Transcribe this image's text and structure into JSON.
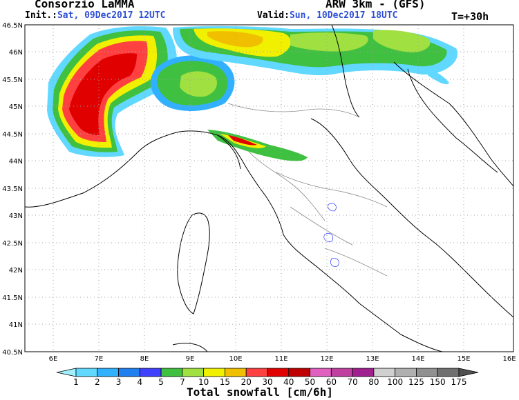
{
  "header": {
    "org": "Consorzio LaMMA",
    "model": "ARW 3km - (GFS)",
    "init_label": "Init.:",
    "init_value": "Sat, 09Dec2017 12UTC",
    "valid_label": "Valid:",
    "valid_value": "Sun, 10Dec2017 18UTC",
    "timestep": "T=+30h"
  },
  "map": {
    "lat_labels": [
      "46.5N",
      "46N",
      "45.5N",
      "45N",
      "44.5N",
      "44N",
      "43.5N",
      "43N",
      "42.5N",
      "42N",
      "41.5N",
      "41N",
      "40.5N"
    ],
    "lon_labels": [
      "6E",
      "7E",
      "8E",
      "9E",
      "10E",
      "11E",
      "12E",
      "13E",
      "14E",
      "15E",
      "16E"
    ]
  },
  "colorbar": {
    "title": "Total snowfall [cm/6h]",
    "levels": [
      "1",
      "2",
      "3",
      "4",
      "5",
      "7",
      "10",
      "15",
      "20",
      "30",
      "40",
      "50",
      "60",
      "70",
      "80",
      "100",
      "125",
      "150",
      "175"
    ],
    "colors": [
      "#a0f0ff",
      "#60d8ff",
      "#30b0ff",
      "#2080f0",
      "#4040ff",
      "#40c040",
      "#a0e040",
      "#f0f000",
      "#f0c000",
      "#ff4040",
      "#e00000",
      "#c00000",
      "#e060c0",
      "#c040a0",
      "#a02090",
      "#d0d0d0",
      "#b0b0b0",
      "#909090",
      "#707070",
      "#505050"
    ]
  }
}
